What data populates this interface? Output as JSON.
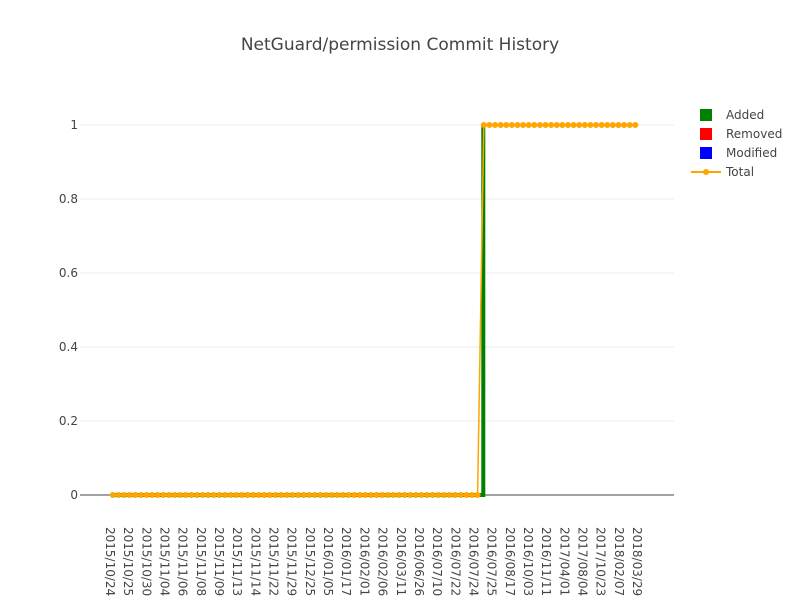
{
  "chart_data": {
    "type": "line",
    "title": "NetGuard/permission Commit History",
    "xlabel": "",
    "ylabel": "",
    "ylim": [
      0,
      1.1
    ],
    "yticks": [
      0,
      0.2,
      0.4,
      0.6,
      0.8,
      1
    ],
    "ytick_labels": [
      "0",
      "0.2",
      "0.4",
      "0.6",
      "0.8",
      "1"
    ],
    "grid": true,
    "legend": {
      "placement": "top-right",
      "items": [
        {
          "name": "Added",
          "color": "#008000",
          "marker": "square"
        },
        {
          "name": "Removed",
          "color": "#ff0000",
          "marker": "square"
        },
        {
          "name": "Modified",
          "color": "#0000ff",
          "marker": "square"
        },
        {
          "name": "Total",
          "color": "#ffa500",
          "marker": "line-dot"
        }
      ]
    },
    "xticks_labels": [
      "2015/10/24",
      "2015/10/25",
      "2015/10/30",
      "2015/11/04",
      "2015/11/06",
      "2015/11/08",
      "2015/11/09",
      "2015/11/13",
      "2015/11/14",
      "2015/11/22",
      "2015/11/29",
      "2015/12/25",
      "2016/01/05",
      "2016/01/17",
      "2016/02/01",
      "2016/02/06",
      "2016/03/11",
      "2016/06/26",
      "2016/07/10",
      "2016/07/22",
      "2016/07/24",
      "2016/07/25",
      "2016/08/17",
      "2016/10/03",
      "2016/11/11",
      "2017/04/01",
      "2017/08/04",
      "2017/10/23",
      "2018/02/07",
      "2018/03/29"
    ],
    "total_zero_count": 66,
    "total_one_count": 28,
    "added_step": {
      "before": 0,
      "after": 1
    },
    "series": [
      {
        "name": "Added",
        "color": "#008000"
      },
      {
        "name": "Removed",
        "color": "#ff0000"
      },
      {
        "name": "Modified",
        "color": "#0000ff"
      },
      {
        "name": "Total",
        "color": "#ffa500"
      }
    ]
  }
}
